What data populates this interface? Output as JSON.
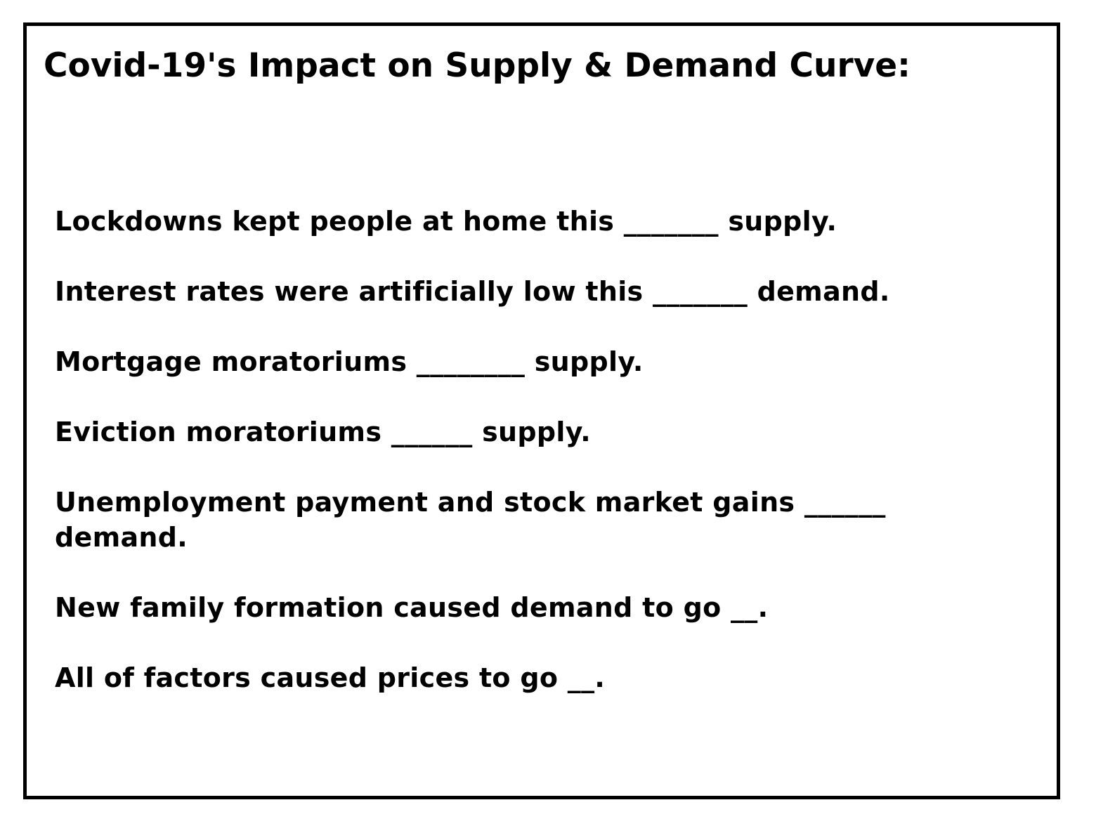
{
  "title": "Covid-19's Impact on Supply & Demand Curve:",
  "statements": [
    "Lockdowns kept people at home this _______ supply.",
    "Interest rates were artificially low this _______ demand.",
    "Mortgage moratoriums ________ supply.",
    "Eviction moratoriums ______ supply.",
    "Unemployment payment and stock market gains ______ demand.",
    "New family formation caused demand to go __.",
    "All of factors caused prices to go __."
  ]
}
